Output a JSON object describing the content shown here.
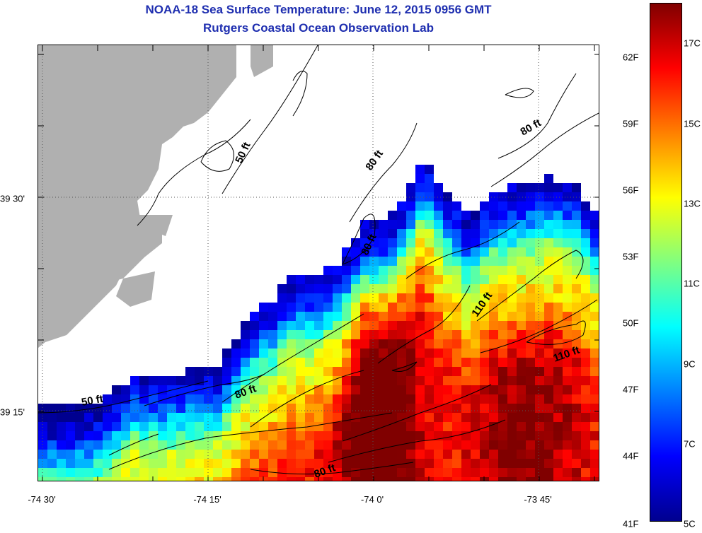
{
  "title": "NOAA-18 Sea Surface Temperature:  June 12, 2015 0956 GMT",
  "subtitle": "Rutgers Coastal Ocean Observation Lab",
  "x_ticks": [
    "-74 30'",
    "-74 15'",
    "-74 0'",
    "-73 45'"
  ],
  "y_ticks": [
    "39 30'",
    "39 15'"
  ],
  "depth_labels": [
    "50 ft",
    "80 ft",
    "80 ft",
    "80 ft",
    "110 ft",
    "110 ft",
    "80 ft",
    "50 ft",
    "80 ft"
  ],
  "colorbar": {
    "fahrenheit_ticks": [
      "62F",
      "59F",
      "56F",
      "53F",
      "50F",
      "47F",
      "44F",
      "41F"
    ],
    "celsius_ticks": [
      "17C",
      "15C",
      "13C",
      "11C",
      "9C",
      "7C",
      "5C"
    ],
    "range_c": [
      5,
      18
    ],
    "colors": [
      "#00008f",
      "#0000ff",
      "#0080ff",
      "#00ffff",
      "#80ff80",
      "#ffff00",
      "#ff8000",
      "#ff0000",
      "#800000"
    ]
  },
  "colors": {
    "title": "#1f2fb0",
    "land": "#b0b0b0",
    "no_data": "#ffffff",
    "contour": "#000000"
  }
}
